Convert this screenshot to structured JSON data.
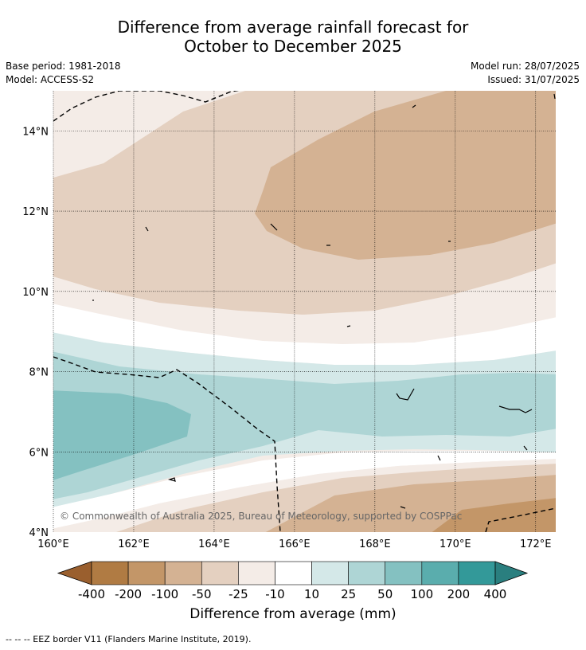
{
  "title_line1": "Difference from average rainfall forecast for",
  "title_line2": "October to December 2025",
  "meta_left": [
    "Base period: 1981-2018",
    "Model: ACCESS-S2"
  ],
  "meta_right": [
    "Model run: 28/07/2025",
    "Issued: 31/07/2025"
  ],
  "axes": {
    "lat_labels": [
      "14°N",
      "12°N",
      "10°N",
      "8°N",
      "6°N",
      "4°N"
    ],
    "lon_labels": [
      "160°E",
      "162°E",
      "164°E",
      "166°E",
      "168°E",
      "170°E",
      "172°E"
    ],
    "lon_range": [
      160,
      172.5
    ],
    "lat_range": [
      4,
      15
    ]
  },
  "colorbar": {
    "labels": [
      "-400",
      "-200",
      "-100",
      "-50",
      "-25",
      "-10",
      "10",
      "25",
      "50",
      "100",
      "200",
      "400"
    ],
    "colors": [
      "#9a5f2e",
      "#b07b43",
      "#c39668",
      "#d4b293",
      "#e4d0c0",
      "#f4ece7",
      "#ffffff",
      "#d4e8e8",
      "#aed5d5",
      "#84c1c1",
      "#5aadad",
      "#339999",
      "#2a7f7f"
    ],
    "unit_label": "Difference from average (mm)"
  },
  "copyright": "© Commonwealth of Australia 2025, Bureau of Meteorology, supported by COSPPac",
  "footnote": "-- -- -- EEZ border V11 (Flanders Marine Institute, 2019)."
}
